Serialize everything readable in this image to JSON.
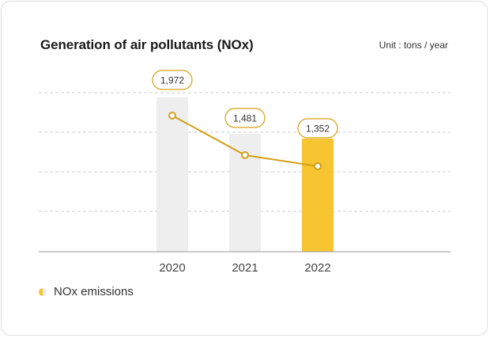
{
  "header": {
    "title": "Generation of air pollutants (NOx)",
    "unit": "Unit : tons / year"
  },
  "legend": {
    "label": "NOx emissions"
  },
  "colors": {
    "highlight_bar": "#f7c531",
    "bar": "#eeeeee",
    "line": "#d4a017",
    "grid": "#cccccc",
    "axis": "#999999",
    "tick_text": "#444444",
    "label_text": "#333333"
  },
  "chart_data": {
    "type": "bar",
    "title": "Generation of air pollutants (NOx)",
    "xlabel": "",
    "ylabel": "",
    "unit": "tons / year",
    "categories": [
      "2020",
      "2021",
      "2022"
    ],
    "series": [
      {
        "name": "NOx emissions",
        "values": [
          1972,
          1481,
          1352
        ],
        "value_labels": [
          "1,972",
          "1,481",
          "1,352"
        ]
      }
    ],
    "overlay": "line",
    "highlight_category": "2022",
    "ylim": [
      0,
      2000
    ],
    "grid": true,
    "legend_position": "bottom-left"
  }
}
